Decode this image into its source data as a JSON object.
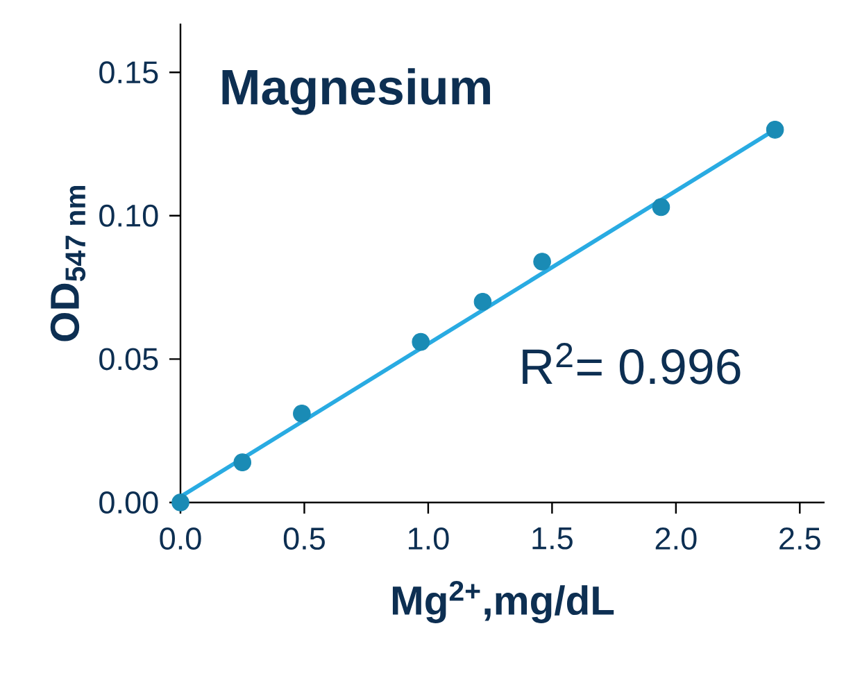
{
  "chart_data": {
    "type": "scatter",
    "title": "Magnesium",
    "xlabel": "Mg$^{2+}$,mg/dL",
    "ylabel": "OD$_{547 nm}$",
    "annotations": [
      "R$^{2}$= 0.996"
    ],
    "xlim": [
      0,
      2.6
    ],
    "ylim": [
      0,
      0.167
    ],
    "xticks": [
      {
        "value": 0,
        "label": "0.0"
      },
      0.5,
      {
        "value": 1,
        "label": "1.0"
      },
      1.5,
      {
        "value": 2,
        "label": "2.0"
      },
      2.5
    ],
    "yticks": [
      {
        "value": 0,
        "label": "0.00"
      },
      0.05,
      {
        "value": 0.1,
        "label": "0.10"
      },
      0.15
    ],
    "grid": false,
    "series": [
      {
        "color": "#1a8bb5",
        "x": [
          0,
          0.25,
          0.49,
          0.97,
          1.22,
          1.46,
          1.94,
          2.4
        ],
        "values": [
          0,
          0.014,
          0.031,
          0.056,
          0.07,
          0.084,
          0.103,
          0.13
        ]
      },
      {
        "type": "line",
        "color": "#29abe2",
        "x": [
          0,
          2.4
        ],
        "values": [
          0.002,
          0.13
        ]
      }
    ]
  }
}
